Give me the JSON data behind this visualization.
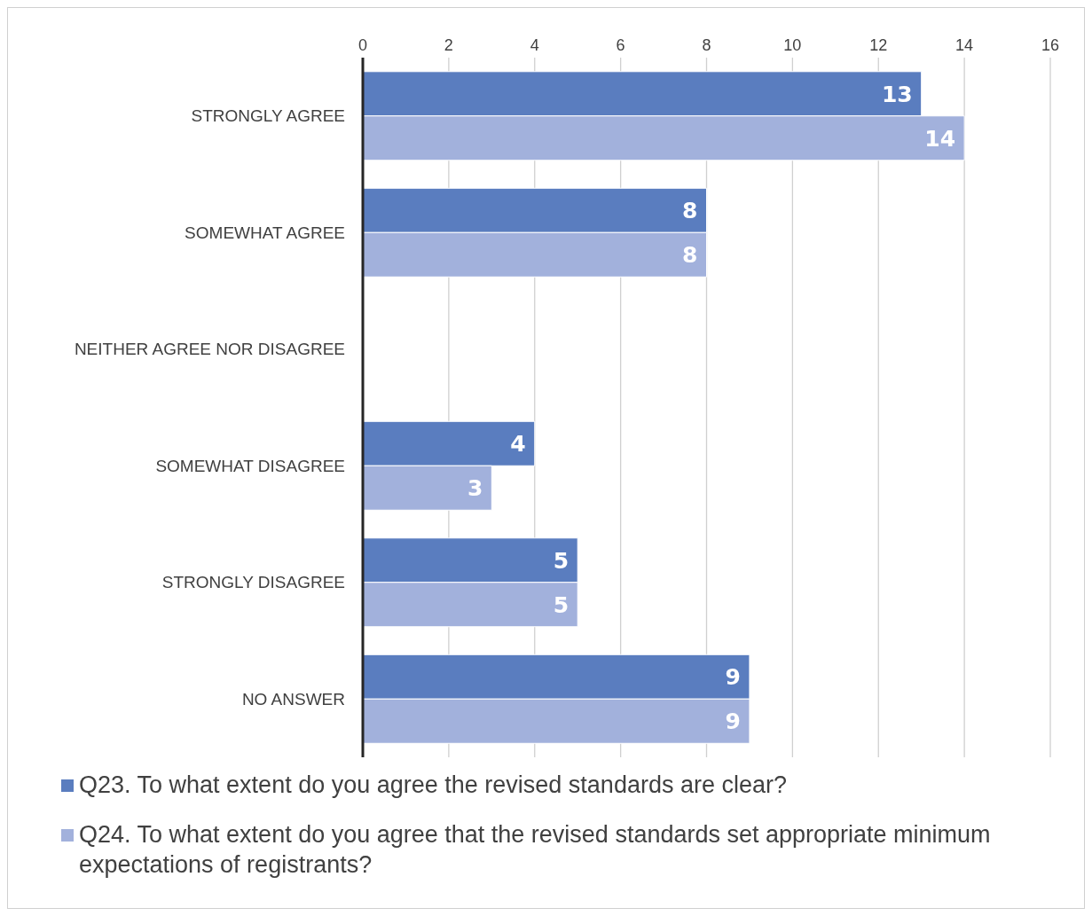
{
  "chart_data": {
    "type": "bar",
    "orientation": "horizontal",
    "categories": [
      "STRONGLY AGREE",
      "SOMEWHAT AGREE",
      "NEITHER AGREE NOR DISAGREE",
      "SOMEWHAT DISAGREE",
      "STRONGLY DISAGREE",
      "NO ANSWER"
    ],
    "series": [
      {
        "name": "Q23. To what extent do you agree the revised standards are clear?",
        "color": "#5a7dbf",
        "values": [
          13,
          8,
          null,
          4,
          5,
          9
        ]
      },
      {
        "name": "Q24. To what extent do you agree that the revised standards set appropriate minimum expectations of registrants?",
        "color": "#a2b1dc",
        "values": [
          14,
          8,
          null,
          3,
          5,
          9
        ]
      }
    ],
    "xlim": [
      0,
      16
    ],
    "xticks": [
      0,
      2,
      4,
      6,
      8,
      10,
      12,
      14,
      16
    ],
    "grid": "x",
    "legend": "bottom",
    "data_labels": true
  }
}
